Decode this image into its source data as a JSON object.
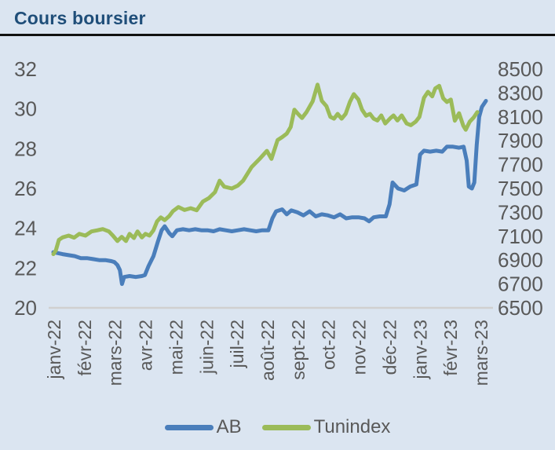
{
  "title": "Cours boursier",
  "colors": {
    "background": "#dbe5f1",
    "title_text": "#1f4e79",
    "title_rule": "#111111",
    "axis_text": "#595959",
    "gridline": "#d0d0d0",
    "ab_line": "#4a7ebb",
    "tunindex_line": "#9bbb59"
  },
  "chart_data": {
    "type": "line",
    "title": "Cours boursier",
    "xlabel": "",
    "ylabel_left": "",
    "ylabel_right": "",
    "grid": "single baseline gridline at bottom value only",
    "legend_position": "bottom-center",
    "x_tick_labels": [
      "janv-22",
      "févr-22",
      "mars-22",
      "avr-22",
      "mai-22",
      "juin-22",
      "juil-22",
      "août-22",
      "sept-22",
      "oct-22",
      "nov-22",
      "déc-22",
      "janv-23",
      "févr-23",
      "mars-23"
    ],
    "left_axis": {
      "min": 20,
      "max": 32,
      "tick_step": 2,
      "ticks": [
        20,
        22,
        24,
        26,
        28,
        30,
        32
      ]
    },
    "right_axis": {
      "min": 6500,
      "max": 8500,
      "tick_step": 200,
      "ticks": [
        6500,
        6700,
        6900,
        7100,
        7300,
        7500,
        7700,
        7900,
        8100,
        8300,
        8500
      ]
    },
    "series": [
      {
        "name": "AB",
        "axis": "left",
        "color": "#4a7ebb",
        "points": [
          [
            0,
            22.8
          ],
          [
            0.15,
            22.75
          ],
          [
            0.3,
            22.7
          ],
          [
            0.5,
            22.65
          ],
          [
            0.7,
            22.6
          ],
          [
            0.9,
            22.5
          ],
          [
            1.1,
            22.5
          ],
          [
            1.3,
            22.45
          ],
          [
            1.5,
            22.4
          ],
          [
            1.7,
            22.4
          ],
          [
            1.9,
            22.35
          ],
          [
            2.0,
            22.3
          ],
          [
            2.1,
            22.15
          ],
          [
            2.18,
            21.9
          ],
          [
            2.25,
            21.2
          ],
          [
            2.32,
            21.55
          ],
          [
            2.5,
            21.6
          ],
          [
            2.7,
            21.55
          ],
          [
            2.9,
            21.6
          ],
          [
            3.0,
            21.65
          ],
          [
            3.12,
            22.1
          ],
          [
            3.28,
            22.6
          ],
          [
            3.42,
            23.3
          ],
          [
            3.55,
            23.9
          ],
          [
            3.65,
            24.1
          ],
          [
            3.8,
            23.75
          ],
          [
            3.9,
            23.6
          ],
          [
            4.05,
            23.9
          ],
          [
            4.25,
            23.95
          ],
          [
            4.45,
            23.9
          ],
          [
            4.65,
            23.95
          ],
          [
            4.85,
            23.9
          ],
          [
            5.05,
            23.9
          ],
          [
            5.25,
            23.85
          ],
          [
            5.45,
            23.95
          ],
          [
            5.65,
            23.9
          ],
          [
            5.85,
            23.85
          ],
          [
            6.05,
            23.9
          ],
          [
            6.25,
            23.95
          ],
          [
            6.45,
            23.9
          ],
          [
            6.65,
            23.85
          ],
          [
            6.85,
            23.9
          ],
          [
            7.05,
            23.9
          ],
          [
            7.18,
            24.5
          ],
          [
            7.3,
            24.85
          ],
          [
            7.5,
            24.95
          ],
          [
            7.65,
            24.7
          ],
          [
            7.8,
            24.9
          ],
          [
            8.0,
            24.8
          ],
          [
            8.2,
            24.65
          ],
          [
            8.4,
            24.85
          ],
          [
            8.6,
            24.6
          ],
          [
            8.8,
            24.7
          ],
          [
            9.0,
            24.65
          ],
          [
            9.2,
            24.55
          ],
          [
            9.4,
            24.7
          ],
          [
            9.6,
            24.5
          ],
          [
            9.8,
            24.55
          ],
          [
            10.0,
            24.55
          ],
          [
            10.2,
            24.5
          ],
          [
            10.35,
            24.35
          ],
          [
            10.5,
            24.55
          ],
          [
            10.7,
            24.6
          ],
          [
            10.9,
            24.6
          ],
          [
            11.02,
            25.2
          ],
          [
            11.12,
            26.3
          ],
          [
            11.3,
            26.0
          ],
          [
            11.5,
            25.9
          ],
          [
            11.7,
            26.1
          ],
          [
            11.9,
            26.2
          ],
          [
            12.02,
            27.7
          ],
          [
            12.15,
            27.9
          ],
          [
            12.35,
            27.85
          ],
          [
            12.55,
            27.9
          ],
          [
            12.75,
            27.85
          ],
          [
            12.9,
            28.1
          ],
          [
            13.1,
            28.1
          ],
          [
            13.3,
            28.05
          ],
          [
            13.45,
            28.1
          ],
          [
            13.55,
            27.4
          ],
          [
            13.62,
            26.1
          ],
          [
            13.72,
            26.0
          ],
          [
            13.8,
            26.3
          ],
          [
            13.88,
            28.2
          ],
          [
            13.96,
            29.6
          ],
          [
            14.05,
            30.1
          ],
          [
            14.18,
            30.4
          ]
        ]
      },
      {
        "name": "Tunindex",
        "axis": "right",
        "color": "#9bbb59",
        "points": [
          [
            0,
            6950
          ],
          [
            0.08,
            6980
          ],
          [
            0.18,
            7070
          ],
          [
            0.3,
            7090
          ],
          [
            0.5,
            7105
          ],
          [
            0.68,
            7088
          ],
          [
            0.85,
            7120
          ],
          [
            1.05,
            7105
          ],
          [
            1.25,
            7140
          ],
          [
            1.45,
            7150
          ],
          [
            1.62,
            7160
          ],
          [
            1.82,
            7140
          ],
          [
            1.95,
            7105
          ],
          [
            2.1,
            7060
          ],
          [
            2.24,
            7095
          ],
          [
            2.38,
            7060
          ],
          [
            2.5,
            7120
          ],
          [
            2.64,
            7085
          ],
          [
            2.76,
            7140
          ],
          [
            2.9,
            7090
          ],
          [
            3.02,
            7120
          ],
          [
            3.15,
            7105
          ],
          [
            3.28,
            7150
          ],
          [
            3.4,
            7225
          ],
          [
            3.52,
            7258
          ],
          [
            3.65,
            7235
          ],
          [
            3.8,
            7270
          ],
          [
            3.92,
            7310
          ],
          [
            4.1,
            7345
          ],
          [
            4.3,
            7320
          ],
          [
            4.5,
            7335
          ],
          [
            4.7,
            7318
          ],
          [
            4.9,
            7390
          ],
          [
            5.1,
            7420
          ],
          [
            5.3,
            7470
          ],
          [
            5.45,
            7565
          ],
          [
            5.6,
            7515
          ],
          [
            5.85,
            7500
          ],
          [
            6.05,
            7525
          ],
          [
            6.22,
            7565
          ],
          [
            6.5,
            7680
          ],
          [
            6.75,
            7745
          ],
          [
            7.0,
            7815
          ],
          [
            7.15,
            7748
          ],
          [
            7.35,
            7905
          ],
          [
            7.5,
            7930
          ],
          [
            7.65,
            7960
          ],
          [
            7.78,
            8015
          ],
          [
            7.9,
            8160
          ],
          [
            8.02,
            8125
          ],
          [
            8.15,
            8090
          ],
          [
            8.3,
            8140
          ],
          [
            8.5,
            8230
          ],
          [
            8.66,
            8370
          ],
          [
            8.8,
            8235
          ],
          [
            8.95,
            8190
          ],
          [
            9.08,
            8100
          ],
          [
            9.2,
            8085
          ],
          [
            9.32,
            8125
          ],
          [
            9.45,
            8085
          ],
          [
            9.58,
            8125
          ],
          [
            9.72,
            8225
          ],
          [
            9.85,
            8290
          ],
          [
            10.0,
            8245
          ],
          [
            10.12,
            8160
          ],
          [
            10.25,
            8110
          ],
          [
            10.38,
            8125
          ],
          [
            10.5,
            8085
          ],
          [
            10.62,
            8070
          ],
          [
            10.75,
            8112
          ],
          [
            10.88,
            8045
          ],
          [
            11.05,
            8090
          ],
          [
            11.15,
            8112
          ],
          [
            11.28,
            8070
          ],
          [
            11.42,
            8112
          ],
          [
            11.58,
            8045
          ],
          [
            11.72,
            8030
          ],
          [
            11.88,
            8060
          ],
          [
            12.0,
            8100
          ],
          [
            12.15,
            8260
          ],
          [
            12.28,
            8310
          ],
          [
            12.42,
            8272
          ],
          [
            12.52,
            8338
          ],
          [
            12.65,
            8360
          ],
          [
            12.78,
            8255
          ],
          [
            12.9,
            8225
          ],
          [
            13.03,
            8245
          ],
          [
            13.16,
            8068
          ],
          [
            13.3,
            8130
          ],
          [
            13.44,
            8025
          ],
          [
            13.52,
            7992
          ],
          [
            13.65,
            8060
          ],
          [
            13.78,
            8095
          ],
          [
            13.9,
            8140
          ]
        ]
      }
    ]
  },
  "legend": {
    "items": [
      {
        "label": "AB"
      },
      {
        "label": "Tunindex"
      }
    ]
  }
}
